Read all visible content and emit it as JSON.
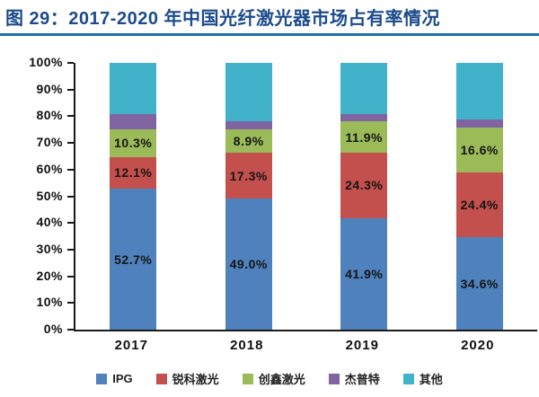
{
  "header": {
    "title": "图 29：2017-2020 年中国光纤激光器市场占有率情况",
    "title_color": "#1b4b8c",
    "underline_color": "#1e6fad"
  },
  "chart_data": {
    "type": "bar",
    "stacked": true,
    "percent_stacked": true,
    "title": "2017-2020 年中国光纤激光器市场占有率情况",
    "xlabel": "",
    "ylabel": "",
    "categories": [
      "2017",
      "2018",
      "2019",
      "2020"
    ],
    "series": [
      {
        "name": "IPG",
        "color": "#4f81bd",
        "values": [
          52.7,
          49.0,
          41.9,
          34.6
        ],
        "labels": [
          "52.7%",
          "49.0%",
          "41.9%",
          "34.6%"
        ],
        "show_labels": true
      },
      {
        "name": "锐科激光",
        "color": "#c4504e",
        "values": [
          12.1,
          17.3,
          24.3,
          24.4
        ],
        "labels": [
          "12.1%",
          "17.3%",
          "24.3%",
          "24.4%"
        ],
        "show_labels": true
      },
      {
        "name": "创鑫激光",
        "color": "#9bbb59",
        "values": [
          10.3,
          8.9,
          11.9,
          16.6
        ],
        "labels": [
          "10.3%",
          "8.9%",
          "11.9%",
          "16.6%"
        ],
        "show_labels": true
      },
      {
        "name": "杰普特",
        "color": "#8064a2",
        "values": [
          5.8,
          2.8,
          2.7,
          3.2
        ],
        "labels": [],
        "show_labels": false
      },
      {
        "name": "其他",
        "color": "#41b2c9",
        "values": [
          19.1,
          22.0,
          19.2,
          21.2
        ],
        "labels": [],
        "show_labels": false
      }
    ],
    "ylim": [
      0,
      100
    ],
    "ytick_step": 10,
    "ytick_labels": [
      "0%",
      "10%",
      "20%",
      "30%",
      "40%",
      "50%",
      "60%",
      "70%",
      "80%",
      "90%",
      "100%"
    ],
    "grid": false,
    "legend_position": "bottom",
    "axis_color": "#1a1a1a"
  }
}
